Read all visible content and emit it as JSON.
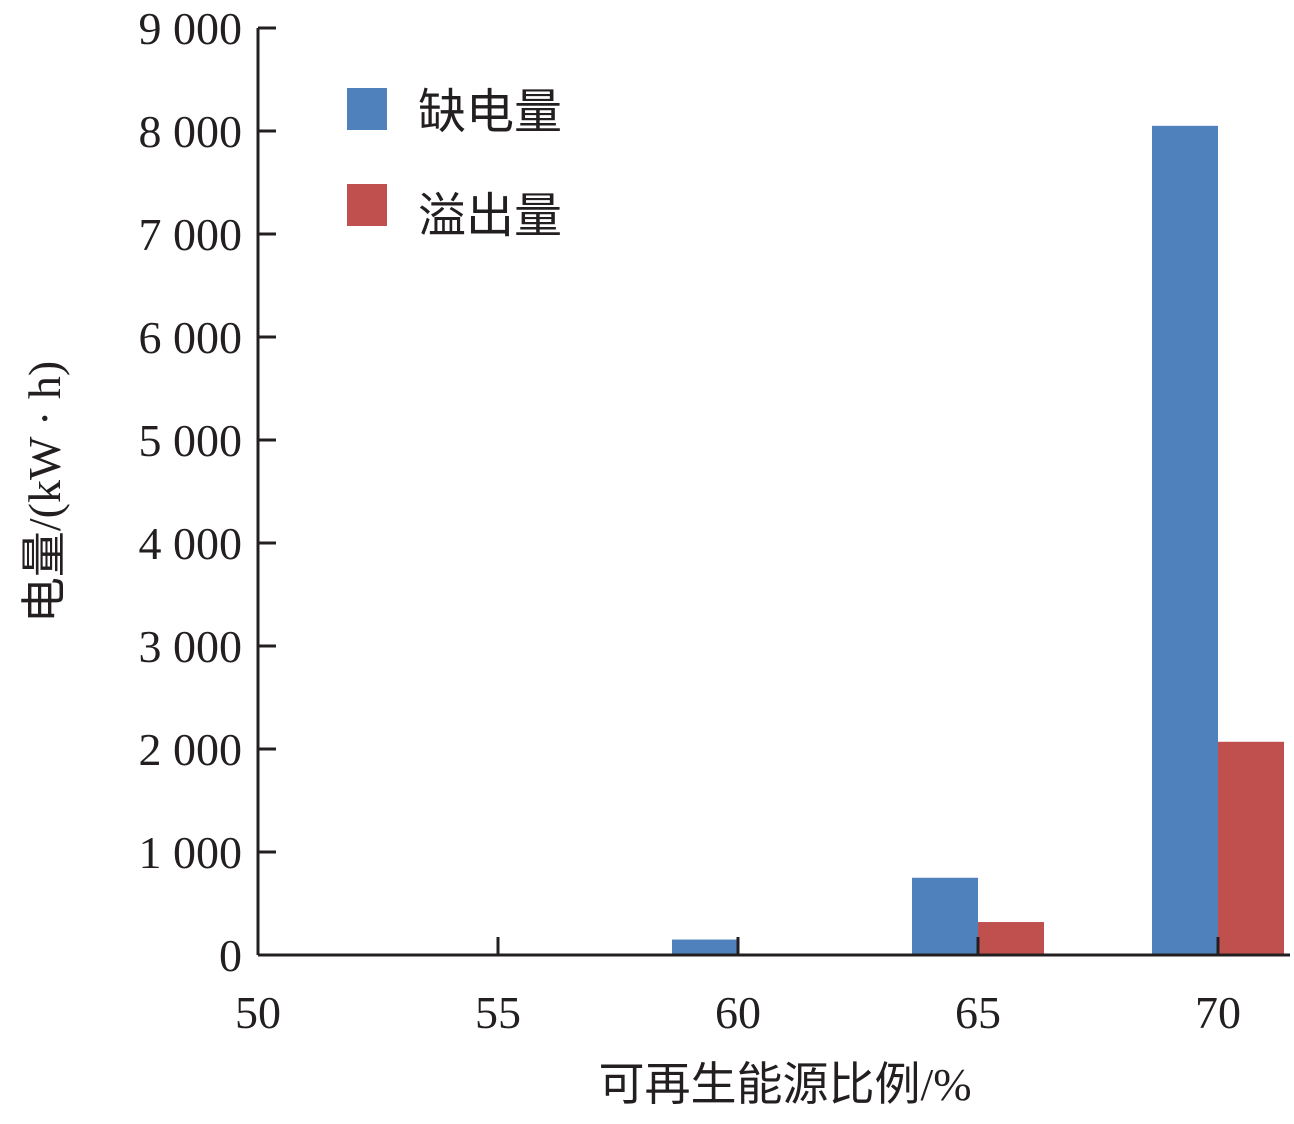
{
  "chart_data": {
    "type": "bar",
    "xlabel": "可再生能源比例/%",
    "ylabel": "电量/(kW · h)",
    "x_ticks": [
      "50",
      "55",
      "60",
      "65",
      "70"
    ],
    "y_ticks": [
      "0",
      "1 000",
      "2 000",
      "3 000",
      "4 000",
      "5 000",
      "6 000",
      "7 000",
      "8 000",
      "9 000"
    ],
    "xlim": [
      50,
      71.5
    ],
    "ylim": [
      0,
      9000
    ],
    "categories": [
      60,
      65,
      70
    ],
    "series": [
      {
        "name": "缺电量",
        "color": "#4f81bd",
        "values": [
          150,
          750,
          8050
        ]
      },
      {
        "name": "溢出量",
        "color": "#c0504d",
        "values": [
          0,
          320,
          2070
        ]
      }
    ],
    "legend_position": "top-left",
    "grid": false
  }
}
